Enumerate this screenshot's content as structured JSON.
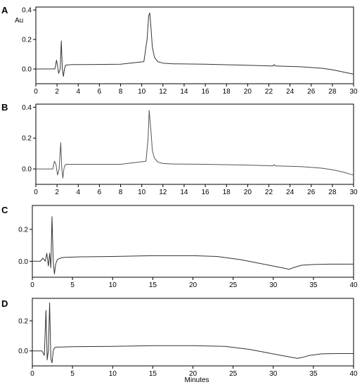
{
  "figure": {
    "x_axis_title": "Minutes"
  },
  "chart_data": [
    {
      "type": "line",
      "panel": "A",
      "ylabel": "Au",
      "xlim": [
        0,
        30
      ],
      "ylim": [
        -0.1,
        0.42
      ],
      "xticks": [
        0,
        2,
        4,
        6,
        8,
        10,
        12,
        14,
        16,
        18,
        20,
        22,
        24,
        26,
        28,
        30
      ],
      "yticks": [
        0.0,
        0.2,
        0.4
      ],
      "ytick_labels": [
        "0.0",
        "0.2",
        "0.4"
      ],
      "line_color": "#333333",
      "series": [
        {
          "x": [
            0,
            1.8,
            1.95,
            2.05,
            2.15,
            2.3,
            2.4,
            2.5,
            2.6,
            2.7,
            2.8,
            3.0,
            3.5,
            5,
            8,
            10.2,
            10.5,
            10.65,
            10.75,
            10.85,
            11.0,
            11.2,
            11.5,
            12,
            13,
            16,
            20,
            22.4,
            22.5,
            22.6,
            25,
            27,
            28,
            29,
            30
          ],
          "y": [
            0.0,
            0.0,
            0.06,
            0.02,
            -0.03,
            0.0,
            0.19,
            0.0,
            -0.05,
            0.0,
            0.025,
            0.028,
            0.03,
            0.03,
            0.032,
            0.05,
            0.2,
            0.36,
            0.38,
            0.3,
            0.15,
            0.08,
            0.05,
            0.04,
            0.035,
            0.032,
            0.025,
            0.02,
            0.03,
            0.02,
            0.015,
            0.005,
            -0.005,
            -0.02,
            -0.035
          ]
        }
      ]
    },
    {
      "type": "line",
      "panel": "B",
      "xlim": [
        0,
        30
      ],
      "ylim": [
        -0.1,
        0.42
      ],
      "xticks": [
        0,
        2,
        4,
        6,
        8,
        10,
        12,
        14,
        16,
        18,
        20,
        22,
        24,
        26,
        28,
        30
      ],
      "yticks": [
        0.0,
        0.2,
        0.4
      ],
      "ytick_labels": [
        "0.0",
        "0.2",
        "0.4"
      ],
      "line_color": "#555555",
      "series": [
        {
          "x": [
            0,
            1.6,
            1.75,
            1.9,
            2.05,
            2.2,
            2.35,
            2.45,
            2.55,
            2.65,
            2.75,
            2.9,
            3.2,
            5,
            8,
            10.4,
            10.6,
            10.7,
            10.8,
            10.9,
            11.0,
            11.2,
            11.5,
            12,
            13,
            16,
            20,
            22.4,
            22.5,
            22.6,
            25,
            27,
            28,
            29,
            30
          ],
          "y": [
            0.0,
            0.0,
            0.05,
            0.03,
            -0.04,
            0.0,
            0.17,
            0.0,
            -0.06,
            0.0,
            0.025,
            0.03,
            0.03,
            0.03,
            0.03,
            0.05,
            0.2,
            0.38,
            0.3,
            0.22,
            0.12,
            0.07,
            0.045,
            0.035,
            0.032,
            0.03,
            0.025,
            0.02,
            0.028,
            0.02,
            0.015,
            0.005,
            -0.005,
            -0.02,
            -0.04
          ]
        }
      ]
    },
    {
      "type": "line",
      "panel": "C",
      "xlim": [
        0,
        40
      ],
      "ylim": [
        -0.1,
        0.35
      ],
      "xticks": [
        0,
        5,
        10,
        15,
        20,
        25,
        30,
        35,
        40
      ],
      "yticks": [
        0.0,
        0.2
      ],
      "ytick_labels": [
        "0.0",
        "0.2"
      ],
      "line_color": "#333333",
      "series": [
        {
          "x": [
            0,
            1.0,
            1.3,
            1.6,
            1.8,
            2.0,
            2.15,
            2.3,
            2.45,
            2.6,
            2.75,
            2.9,
            3.1,
            3.5,
            4,
            6,
            10,
            15,
            20,
            23,
            26,
            28,
            30,
            31.5,
            32.0,
            32.5,
            33.5,
            35,
            37,
            40
          ],
          "y": [
            0.0,
            0.0,
            0.02,
            0.0,
            0.05,
            -0.03,
            0.05,
            -0.04,
            0.28,
            0.0,
            -0.08,
            -0.02,
            0.01,
            0.02,
            0.025,
            0.028,
            0.03,
            0.035,
            0.035,
            0.03,
            0.01,
            -0.01,
            -0.03,
            -0.045,
            -0.05,
            -0.04,
            -0.025,
            -0.02,
            -0.018,
            -0.018
          ]
        }
      ]
    },
    {
      "type": "line",
      "panel": "D",
      "xlim": [
        0,
        40
      ],
      "ylim": [
        -0.1,
        0.35
      ],
      "xticks": [
        0,
        5,
        10,
        15,
        20,
        25,
        30,
        35,
        40
      ],
      "yticks": [
        0.0,
        0.2
      ],
      "ytick_labels": [
        "0.0",
        "0.2"
      ],
      "xlabel": "Minutes",
      "line_color": "#333333",
      "series": [
        {
          "x": [
            0,
            1.2,
            1.5,
            1.7,
            1.85,
            2.0,
            2.15,
            2.3,
            2.45,
            2.6,
            2.75,
            3.0,
            3.5,
            5,
            10,
            15,
            20,
            24,
            27,
            29,
            31,
            32.5,
            33,
            33.5,
            34.5,
            36,
            38,
            40
          ],
          "y": [
            0.0,
            0.0,
            -0.03,
            0.27,
            -0.06,
            0.0,
            0.32,
            -0.05,
            -0.08,
            0.0,
            0.02,
            0.025,
            0.025,
            0.028,
            0.03,
            0.035,
            0.035,
            0.03,
            0.01,
            -0.01,
            -0.03,
            -0.045,
            -0.05,
            -0.045,
            -0.03,
            -0.02,
            -0.018,
            -0.018
          ]
        }
      ]
    }
  ]
}
